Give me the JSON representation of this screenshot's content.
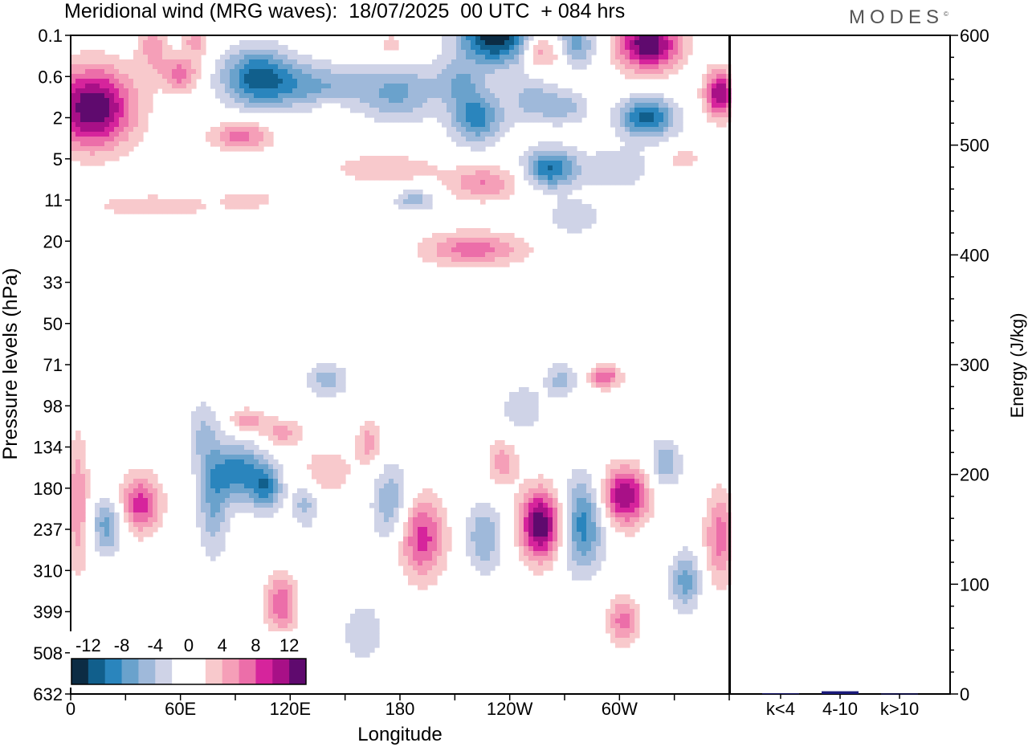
{
  "header": {
    "title": "Meridional wind (MRG waves):  18/07/2025  00 UTC  + 084 hrs",
    "brand": "MODES",
    "brand_mark": "©"
  },
  "chart_data": [
    {
      "type": "heatmap",
      "ylabel": "Pressure levels (hPa)",
      "xlabel": "Longitude",
      "y_scale": "log",
      "y_ticks": [
        "0.1",
        "0.6",
        "2",
        "5",
        "11",
        "20",
        "33",
        "50",
        "71",
        "98",
        "134",
        "180",
        "237",
        "310",
        "399",
        "508",
        "632"
      ],
      "x_ticks": [
        "0",
        "60E",
        "120E",
        "180",
        "120W",
        "60W"
      ],
      "x_tick_values": [
        0,
        60,
        120,
        180,
        240,
        300
      ],
      "xlim": [
        0,
        360
      ],
      "colorbar": {
        "labels": [
          "-12",
          "-8",
          "-4",
          "0",
          "4",
          "8",
          "12"
        ],
        "levels": [
          -14,
          -12,
          -10,
          -8,
          -6,
          -4,
          -2,
          0,
          2,
          4,
          6,
          8,
          10,
          12,
          14
        ],
        "colors": [
          "#0c2c44",
          "#115f8c",
          "#2a85bd",
          "#6aa2cc",
          "#9fb9da",
          "#cfd3e7",
          "#ffffff",
          "#ffffff",
          "#f8c9cc",
          "#f59fb8",
          "#ec6ea9",
          "#d6249c",
          "#a81087",
          "#5f0a6e"
        ]
      },
      "features": [
        {
          "lon": 12,
          "p": 1.5,
          "value": 14,
          "lsp": 16,
          "lsv": 0.7
        },
        {
          "lon": 45,
          "p": 0.15,
          "value": 5,
          "lsp": 6,
          "lsv": 0.5
        },
        {
          "lon": 60,
          "p": 0.55,
          "value": 7,
          "lsp": 7,
          "lsv": 0.3
        },
        {
          "lon": 68,
          "p": 0.12,
          "value": 5,
          "lsp": 5,
          "lsv": 0.35
        },
        {
          "lon": 102,
          "p": 0.6,
          "value": -10,
          "lsp": 14,
          "lsv": 0.5
        },
        {
          "lon": 135,
          "p": 0.8,
          "value": -6,
          "lsp": 22,
          "lsv": 0.4
        },
        {
          "lon": 180,
          "p": 1.0,
          "value": -6,
          "lsp": 14,
          "lsv": 0.5
        },
        {
          "lon": 93,
          "p": 3.0,
          "value": 7,
          "lsp": 12,
          "lsv": 0.25
        },
        {
          "lon": 141,
          "p": 1.7,
          "value": 3,
          "lsp": 5,
          "lsv": 0.2
        },
        {
          "lon": 175,
          "p": 0.15,
          "value": 3,
          "lsp": 5,
          "lsv": 0.25
        },
        {
          "lon": 232,
          "p": 0.1,
          "value": -14,
          "lsp": 14,
          "lsv": 0.5
        },
        {
          "lon": 212,
          "p": 0.7,
          "value": -5,
          "lsp": 10,
          "lsv": 0.4
        },
        {
          "lon": 222,
          "p": 2.0,
          "value": -9,
          "lsp": 10,
          "lsv": 0.45
        },
        {
          "lon": 253,
          "p": 1.2,
          "value": -5,
          "lsp": 10,
          "lsv": 0.4
        },
        {
          "lon": 262,
          "p": 0.2,
          "value": 6,
          "lsp": 8,
          "lsv": 0.35
        },
        {
          "lon": 253,
          "p": 0.2,
          "value": 3,
          "lsp": 4,
          "lsv": 0.25
        },
        {
          "lon": 275,
          "p": 0.15,
          "value": -8,
          "lsp": 8,
          "lsv": 0.4
        },
        {
          "lon": 316,
          "p": 0.15,
          "value": 14,
          "lsp": 12,
          "lsv": 0.45
        },
        {
          "lon": 355,
          "p": 1.0,
          "value": 12,
          "lsp": 6,
          "lsv": 0.4
        },
        {
          "lon": 315,
          "p": 2.0,
          "value": -11,
          "lsp": 11,
          "lsv": 0.35
        },
        {
          "lon": 272,
          "p": 1.5,
          "value": -4,
          "lsp": 9,
          "lsv": 0.3
        },
        {
          "lon": 262,
          "p": 6.0,
          "value": -10,
          "lsp": 10,
          "lsv": 0.35
        },
        {
          "lon": 298,
          "p": 6.0,
          "value": -4,
          "lsp": 14,
          "lsv": 0.35
        },
        {
          "lon": 226,
          "p": 8.0,
          "value": 6,
          "lsp": 14,
          "lsv": 0.3
        },
        {
          "lon": 172,
          "p": 6.0,
          "value": 4,
          "lsp": 20,
          "lsv": 0.25
        },
        {
          "lon": 45,
          "p": 12.0,
          "value": 3,
          "lsp": 30,
          "lsv": 0.25
        },
        {
          "lon": 188,
          "p": 11.0,
          "value": -5,
          "lsp": 8,
          "lsv": 0.2
        },
        {
          "lon": 275,
          "p": 14.0,
          "value": -4,
          "lsp": 10,
          "lsv": 0.3
        },
        {
          "lon": 220,
          "p": 22.0,
          "value": 7,
          "lsp": 20,
          "lsv": 0.3
        },
        {
          "lon": 335,
          "p": 5.0,
          "value": 3,
          "lsp": 8,
          "lsv": 0.2
        },
        {
          "lon": 98,
          "p": 11.0,
          "value": 3,
          "lsp": 10,
          "lsv": 0.15
        },
        {
          "lon": 4,
          "p": 200.0,
          "value": 6,
          "lsp": 4,
          "lsv": 1.2
        },
        {
          "lon": 20,
          "p": 230.0,
          "value": -7,
          "lsp": 6,
          "lsv": 0.5
        },
        {
          "lon": 38,
          "p": 200.0,
          "value": 9,
          "lsp": 8,
          "lsv": 0.5
        },
        {
          "lon": 72,
          "p": 120.0,
          "value": -4,
          "lsp": 6,
          "lsv": 0.6
        },
        {
          "lon": 78,
          "p": 200.0,
          "value": -6,
          "lsp": 6,
          "lsv": 0.9
        },
        {
          "lon": 92,
          "p": 160.0,
          "value": -9,
          "lsp": 10,
          "lsv": 0.5
        },
        {
          "lon": 96,
          "p": 110.0,
          "value": 6,
          "lsp": 6,
          "lsv": 0.2
        },
        {
          "lon": 115,
          "p": 120.0,
          "value": 5,
          "lsp": 8,
          "lsv": 0.25
        },
        {
          "lon": 107,
          "p": 180.0,
          "value": -8,
          "lsp": 6,
          "lsv": 0.4
        },
        {
          "lon": 128,
          "p": 200.0,
          "value": -5,
          "lsp": 5,
          "lsv": 0.4
        },
        {
          "lon": 115,
          "p": 380.0,
          "value": 8,
          "lsp": 6,
          "lsv": 0.5
        },
        {
          "lon": 140,
          "p": 160.0,
          "value": 4,
          "lsp": 10,
          "lsv": 0.4
        },
        {
          "lon": 140,
          "p": 80.0,
          "value": -5,
          "lsp": 8,
          "lsv": 0.3
        },
        {
          "lon": 163,
          "p": 130.0,
          "value": 5,
          "lsp": 5,
          "lsv": 0.4
        },
        {
          "lon": 175,
          "p": 200.0,
          "value": -6,
          "lsp": 7,
          "lsv": 0.7
        },
        {
          "lon": 192,
          "p": 250.0,
          "value": 9,
          "lsp": 9,
          "lsv": 0.7
        },
        {
          "lon": 226,
          "p": 250.0,
          "value": -6,
          "lsp": 7,
          "lsv": 0.6
        },
        {
          "lon": 236,
          "p": 150.0,
          "value": 5,
          "lsp": 6,
          "lsv": 0.4
        },
        {
          "lon": 257,
          "p": 230.0,
          "value": 14,
          "lsp": 8,
          "lsv": 0.6
        },
        {
          "lon": 247,
          "p": 100.0,
          "value": -4,
          "lsp": 8,
          "lsv": 0.4
        },
        {
          "lon": 268,
          "p": 80.0,
          "value": -5,
          "lsp": 6,
          "lsv": 0.3
        },
        {
          "lon": 280,
          "p": 230.0,
          "value": -9,
          "lsp": 8,
          "lsv": 0.8
        },
        {
          "lon": 292,
          "p": 78.0,
          "value": 8,
          "lsp": 6,
          "lsv": 0.2
        },
        {
          "lon": 303,
          "p": 190.0,
          "value": 12,
          "lsp": 9,
          "lsv": 0.5
        },
        {
          "lon": 302,
          "p": 420.0,
          "value": 7,
          "lsp": 6,
          "lsv": 0.4
        },
        {
          "lon": 325,
          "p": 150.0,
          "value": -6,
          "lsp": 6,
          "lsv": 0.4
        },
        {
          "lon": 336,
          "p": 330.0,
          "value": -7,
          "lsp": 6,
          "lsv": 0.5
        },
        {
          "lon": 355,
          "p": 250.0,
          "value": 7,
          "lsp": 6,
          "lsv": 0.8
        },
        {
          "lon": 160,
          "p": 450.0,
          "value": -4,
          "lsp": 8,
          "lsv": 0.5
        }
      ]
    },
    {
      "type": "bar",
      "categories": [
        "k<4",
        "4-10",
        "k>10"
      ],
      "values": [
        0.6,
        2.5,
        0.4
      ],
      "ylabel": "Energy (J/kg)",
      "ylim": [
        0,
        600
      ],
      "y_ticks": [
        "0",
        "100",
        "200",
        "300",
        "400",
        "500",
        "600"
      ],
      "bar_color": "#1b1b7a"
    }
  ]
}
